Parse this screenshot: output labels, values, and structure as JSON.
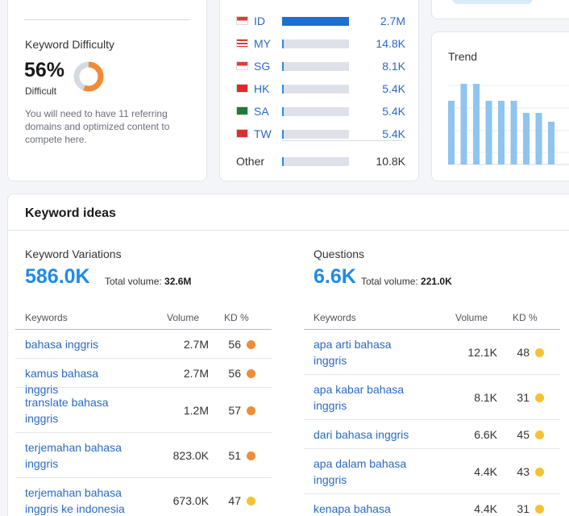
{
  "kd_card": {
    "title": "Keyword Difficulty",
    "value": "56%",
    "level": "Difficult",
    "percent": 56,
    "ring_color": "#f28b35",
    "description": "You will need to have 11 referring domains and optimized content to compete here."
  },
  "countries": {
    "rows": [
      {
        "code": "ID",
        "volume": "2.7M",
        "share": 1.0,
        "flag": "indonesia-flag"
      },
      {
        "code": "MY",
        "volume": "14.8K",
        "share": 0.03,
        "flag": "malaysia-flag"
      },
      {
        "code": "SG",
        "volume": "8.1K",
        "share": 0.03,
        "flag": "singapore-flag"
      },
      {
        "code": "HK",
        "volume": "5.4K",
        "share": 0.03,
        "flag": "hong-kong-flag"
      },
      {
        "code": "SA",
        "volume": "5.4K",
        "share": 0.03,
        "flag": "saudi-arabia-flag"
      },
      {
        "code": "TW",
        "volume": "5.4K",
        "share": 0.03,
        "flag": "taiwan-flag"
      }
    ],
    "other": {
      "label": "Other",
      "volume": "10.8K",
      "share": 0.03
    }
  },
  "trend": {
    "title": "Trend",
    "bar_color": "#8ec4ef",
    "values": [
      0.79,
      1.0,
      1.0,
      0.79,
      0.79,
      0.79,
      0.64,
      0.64,
      0.53
    ]
  },
  "ideas": {
    "title": "Keyword ideas",
    "variations": {
      "title": "Keyword Variations",
      "count": "586.0K",
      "total_label": "Total volume:",
      "total_value": "32.6M",
      "headers": {
        "keywords": "Keywords",
        "volume": "Volume",
        "kd": "KD %"
      },
      "rows": [
        {
          "keyword": "bahasa inggris",
          "volume": "2.7M",
          "kd": "56",
          "dot": "#f28b35"
        },
        {
          "keyword": "kamus bahasa inggris",
          "volume": "2.7M",
          "kd": "56",
          "dot": "#f28b35"
        },
        {
          "keyword": "translate bahasa inggris",
          "volume": "1.2M",
          "kd": "57",
          "dot": "#f28b35"
        },
        {
          "keyword": "terjemahan bahasa inggris",
          "volume": "823.0K",
          "kd": "51",
          "dot": "#f28b35"
        },
        {
          "keyword": "terjemahan bahasa inggris ke indonesia",
          "volume": "673.0K",
          "kd": "47",
          "dot": "#f5c332"
        }
      ]
    },
    "questions": {
      "title": "Questions",
      "count": "6.6K",
      "total_label": "Total volume:",
      "total_value": "221.0K",
      "headers": {
        "keywords": "Keywords",
        "volume": "Volume",
        "kd": "KD %"
      },
      "rows": [
        {
          "keyword": "apa arti bahasa inggris",
          "volume": "12.1K",
          "kd": "48",
          "dot": "#f5c332"
        },
        {
          "keyword": "apa kabar bahasa inggris",
          "volume": "8.1K",
          "kd": "31",
          "dot": "#f5c332"
        },
        {
          "keyword": "dari bahasa inggris",
          "volume": "6.6K",
          "kd": "45",
          "dot": "#f5c332"
        },
        {
          "keyword": "apa dalam bahasa inggris",
          "volume": "4.4K",
          "kd": "43",
          "dot": "#f5c332"
        },
        {
          "keyword": "kenapa bahasa inggris",
          "volume": "4.4K",
          "kd": "31",
          "dot": "#f5c332"
        }
      ]
    }
  }
}
